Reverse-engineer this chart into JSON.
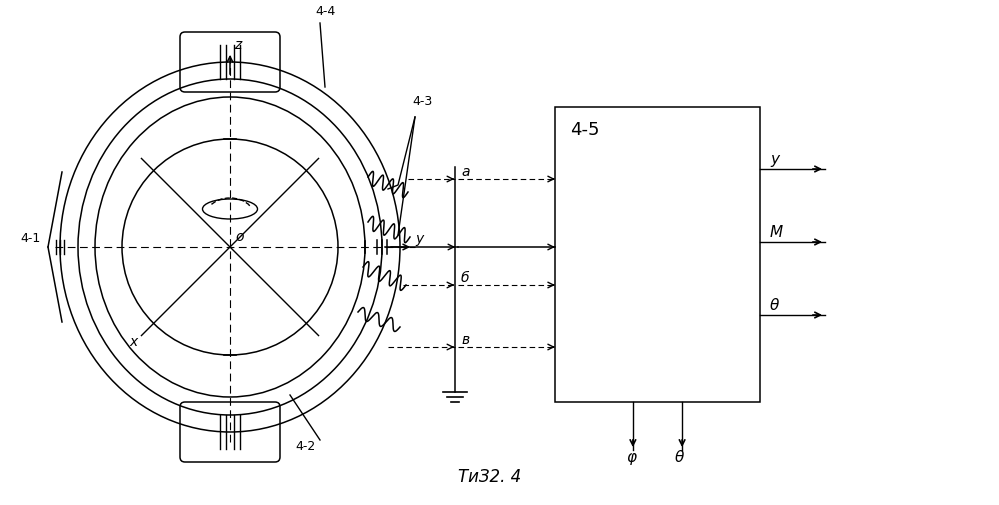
{
  "bg_color": "#ffffff",
  "line_color": "#000000",
  "fig_caption": "ΤиЗ2. 4",
  "label_41": "4-1",
  "label_42": "4-2",
  "label_43": "4-3",
  "label_44": "4-4",
  "label_45": "4-5",
  "label_a": "a",
  "label_b": "б",
  "label_B": "в",
  "label_y_out": "у",
  "label_M_out": "М",
  "label_th_out": "θ",
  "label_phi_down": "φ",
  "label_th_down": "θ",
  "label_z": "z",
  "label_y": "y",
  "label_x": "x",
  "label_o": "o",
  "fig_width": 9.99,
  "fig_height": 5.05,
  "dpi": 100
}
